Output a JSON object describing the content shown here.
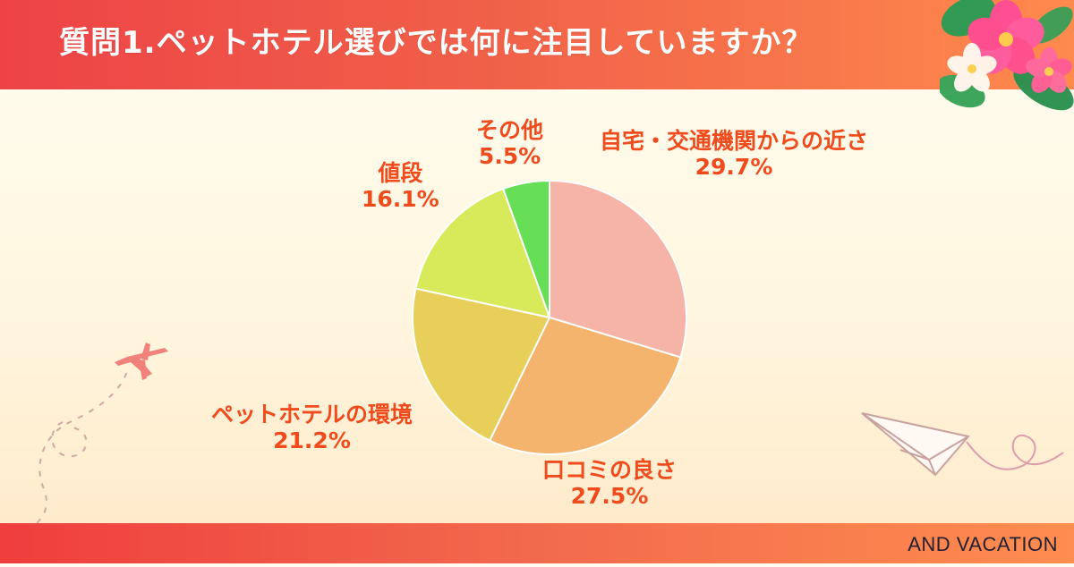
{
  "page": {
    "title": "質問1.ペットホテル選びでは何に注目していますか？",
    "brand": "AND VACATION"
  },
  "chart_data": {
    "type": "pie",
    "title": "",
    "slices": [
      {
        "label": "自宅・交通機関からの近さ",
        "value": 29.7,
        "display": "29.7%",
        "color": "#f6b3a7"
      },
      {
        "label": "口コミの良さ",
        "value": 27.5,
        "display": "27.5%",
        "color": "#f5b46e"
      },
      {
        "label": "ペットホテルの環境",
        "value": 21.2,
        "display": "21.2%",
        "color": "#e8cf59"
      },
      {
        "label": "値段",
        "value": 16.1,
        "display": "16.1%",
        "color": "#d6ea5a"
      },
      {
        "label": "その他",
        "value": 5.5,
        "display": "5.5%",
        "color": "#66df57"
      }
    ],
    "label_color": "#f04b1d"
  }
}
